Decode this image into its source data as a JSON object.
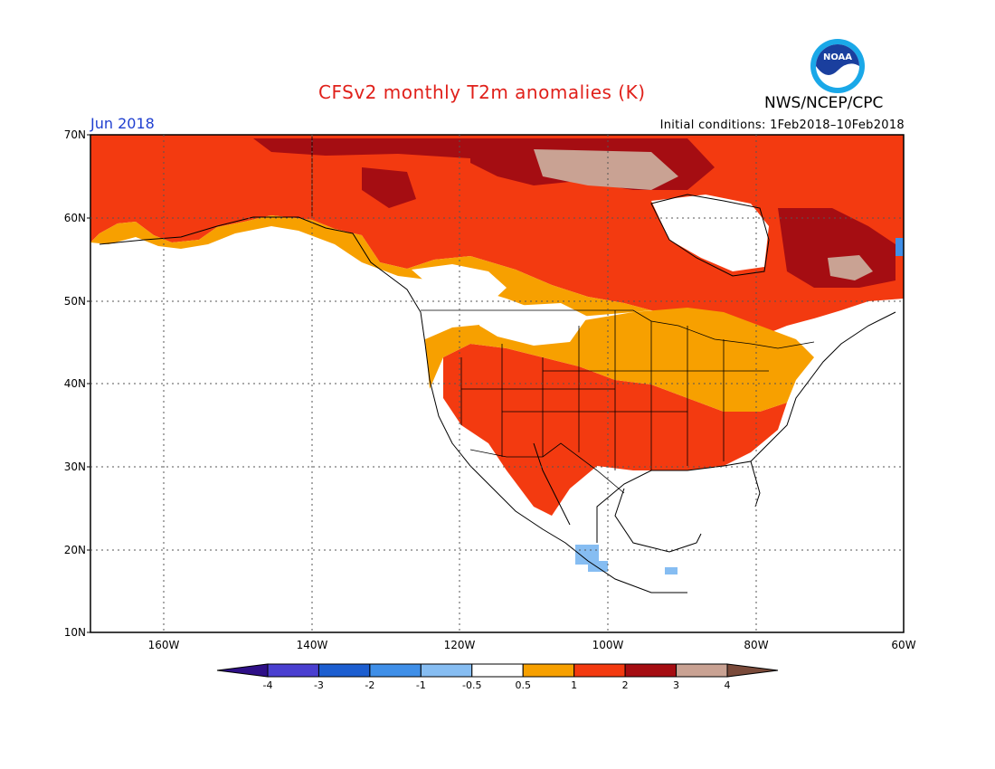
{
  "title": "CFSv2 monthly T2m anomalies (K)",
  "agency": "NWS/NCEP/CPC",
  "logo_text": "NOAA",
  "valid_month": "Jun 2018",
  "initial_conditions": "Initial conditions: 1Feb2018–10Feb2018",
  "lat_labels": [
    "70N",
    "60N",
    "50N",
    "40N",
    "30N",
    "20N",
    "10N"
  ],
  "lon_labels": [
    "160W",
    "140W",
    "120W",
    "100W",
    "80W",
    "60W"
  ],
  "colorbar": {
    "tick_labels": [
      "-4",
      "-3",
      "-2",
      "-1",
      "-0.5",
      "0.5",
      "1",
      "2",
      "3",
      "4"
    ],
    "colors": [
      "#2e0f87",
      "#4a3fd0",
      "#1c5ed0",
      "#3f8fe8",
      "#86bdf2",
      "#ffffff",
      "#f7a000",
      "#f33a10",
      "#a50d12",
      "#c9a293",
      "#7a4a3a"
    ]
  }
}
